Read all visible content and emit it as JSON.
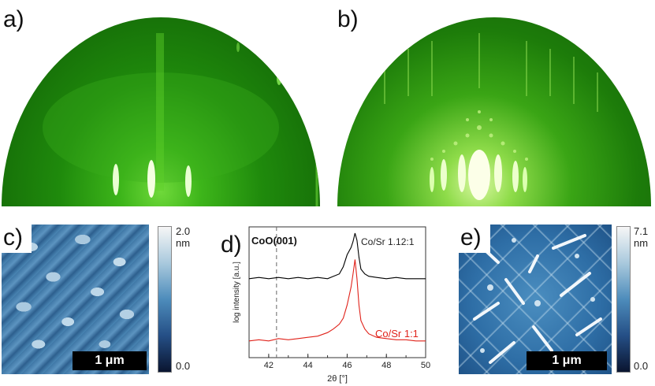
{
  "panels": {
    "a": {
      "label": "a)"
    },
    "b": {
      "label": "b)"
    },
    "c": {
      "label": "c)",
      "scalebar": "1 μm",
      "colorbar_max": "2.0",
      "colorbar_unit": "nm",
      "colorbar_min": "0.0"
    },
    "d": {
      "label": "d)"
    },
    "e": {
      "label": "e)",
      "scalebar": "1 μm",
      "colorbar_max": "7.1",
      "colorbar_unit": "nm",
      "colorbar_min": "0.0"
    }
  },
  "colors": {
    "rheed_green": "#2f9a12",
    "afm_dark": "#0e2244",
    "afm_light": "#dfeaf2",
    "series_black": "#000000",
    "series_red": "#e0221a"
  },
  "chart_data": {
    "type": "line",
    "xlabel": "2θ [°]",
    "ylabel": "log intensity [a.u.]",
    "xlim": [
      41,
      50
    ],
    "xticks": [
      "42",
      "44",
      "46",
      "48",
      "50"
    ],
    "reference_line": {
      "x": 42.4,
      "label": "CoO(001)"
    },
    "grid": false,
    "series": [
      {
        "name": "Co/Sr 1.12:1",
        "color": "#000000",
        "x": [
          41,
          41.5,
          42,
          42.5,
          43,
          43.5,
          44,
          44.5,
          45,
          45.3,
          45.6,
          45.8,
          46.0,
          46.2,
          46.3,
          46.4,
          46.5,
          46.6,
          46.7,
          46.9,
          47.1,
          47.5,
          48,
          48.5,
          49,
          49.5,
          50
        ],
        "y": [
          0.62,
          0.63,
          0.62,
          0.63,
          0.62,
          0.63,
          0.62,
          0.63,
          0.62,
          0.64,
          0.66,
          0.72,
          0.82,
          0.88,
          0.93,
          1.0,
          0.94,
          0.8,
          0.7,
          0.66,
          0.64,
          0.63,
          0.62,
          0.63,
          0.62,
          0.62,
          0.62
        ]
      },
      {
        "name": "Co/Sr 1:1",
        "color": "#e0221a",
        "x": [
          41,
          41.5,
          42,
          42.5,
          43,
          43.5,
          44,
          44.5,
          45,
          45.3,
          45.6,
          45.8,
          46.0,
          46.2,
          46.3,
          46.4,
          46.5,
          46.6,
          46.7,
          46.9,
          47.1,
          47.5,
          48,
          48.5,
          49,
          49.5,
          50
        ],
        "y": [
          0.1,
          0.11,
          0.1,
          0.12,
          0.11,
          0.12,
          0.13,
          0.14,
          0.17,
          0.2,
          0.24,
          0.29,
          0.4,
          0.55,
          0.66,
          0.78,
          0.62,
          0.4,
          0.27,
          0.2,
          0.16,
          0.13,
          0.12,
          0.11,
          0.11,
          0.1,
          0.1
        ]
      }
    ]
  }
}
